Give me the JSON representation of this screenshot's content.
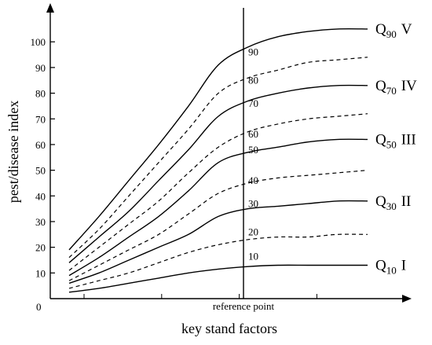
{
  "chart_data": {
    "type": "line",
    "ylabel": "pest/disease index",
    "xlabel": "key stand factors",
    "origin_label": "0",
    "reference_label": "reference point",
    "y_ticks": [
      "10",
      "20",
      "30",
      "40",
      "50",
      "60",
      "70",
      "80",
      "90",
      "100"
    ],
    "ylim": [
      0,
      112
    ],
    "xlim": [
      0,
      10
    ],
    "reference_x": 5,
    "x": [
      0,
      1,
      2,
      3,
      4,
      5,
      6,
      7,
      8,
      9,
      10
    ],
    "series": [
      {
        "id": "q90",
        "quantile_label": "Q",
        "quantile_sub": "90",
        "class_label": "V",
        "line": "solid",
        "values": [
          19,
          32,
          46,
          60,
          75,
          91,
          98,
          102,
          104,
          105,
          105
        ]
      },
      {
        "id": "q80",
        "line": "dashed",
        "values": [
          16,
          27,
          40,
          53,
          66,
          80,
          86,
          89,
          92,
          93,
          94
        ]
      },
      {
        "id": "q70",
        "quantile_label": "Q",
        "quantile_sub": "70",
        "class_label": "IV",
        "line": "solid",
        "values": [
          14,
          24,
          34,
          46,
          58,
          71,
          77,
          80,
          82,
          83,
          83
        ]
      },
      {
        "id": "q60",
        "line": "dashed",
        "values": [
          11,
          20,
          29,
          38,
          49,
          59,
          65,
          68,
          70,
          71,
          72
        ]
      },
      {
        "id": "q50",
        "quantile_label": "Q",
        "quantile_sub": "50",
        "class_label": "III",
        "line": "solid",
        "values": [
          9,
          16,
          24,
          32,
          42,
          53,
          57,
          59,
          61,
          62,
          62
        ]
      },
      {
        "id": "q40",
        "line": "dashed",
        "values": [
          7,
          13,
          19,
          25,
          33,
          41,
          45,
          47,
          48,
          49,
          50
        ]
      },
      {
        "id": "q30",
        "quantile_label": "Q",
        "quantile_sub": "30",
        "class_label": "II",
        "line": "solid",
        "values": [
          6,
          10,
          15,
          20,
          25,
          32,
          35,
          36,
          37,
          38,
          38
        ]
      },
      {
        "id": "q20",
        "line": "dashed",
        "values": [
          4,
          7,
          10,
          14,
          18,
          21,
          23,
          24,
          24,
          25,
          25
        ]
      },
      {
        "id": "q10",
        "quantile_label": "Q",
        "quantile_sub": "10",
        "class_label": "I",
        "line": "solid",
        "values": [
          2.5,
          4,
          6,
          8,
          10,
          11.5,
          12.5,
          13,
          13,
          13,
          13
        ]
      }
    ],
    "reference_labels": [
      "90",
      "80",
      "70",
      "60",
      "50",
      "40",
      "30",
      "20",
      "10"
    ]
  }
}
